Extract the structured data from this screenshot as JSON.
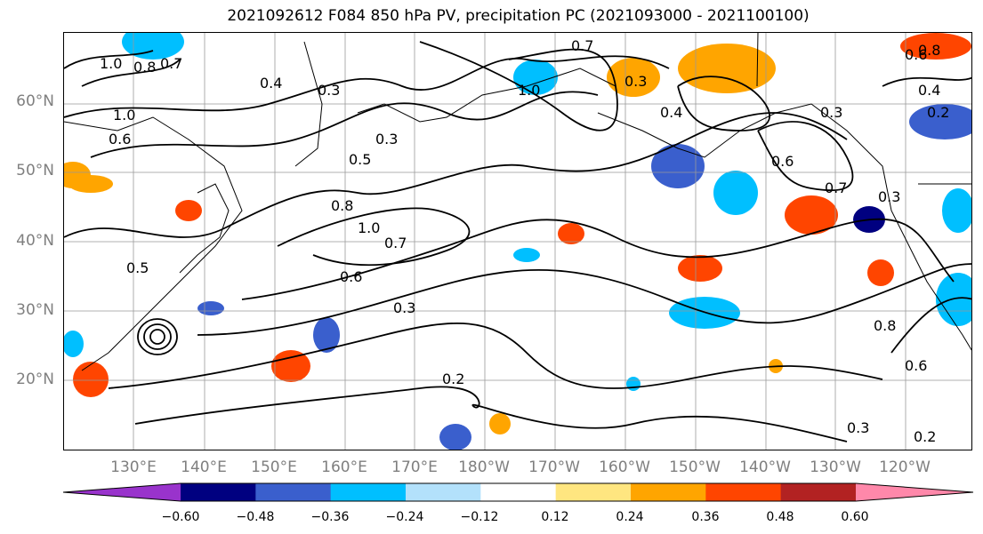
{
  "title": "2021092612 F084 850 hPa PV, precipitation PC (2021093000 - 2021100100)",
  "lat_labels": [
    "60°N",
    "50°N",
    "40°N",
    "30°N",
    "20°N"
  ],
  "lon_labels": [
    "130°E",
    "140°E",
    "150°E",
    "160°E",
    "170°E",
    "180°W",
    "170°W",
    "160°W",
    "150°W",
    "140°W",
    "130°W",
    "120°W"
  ],
  "contour_labels": [
    "1.0",
    "0.8",
    "0.7",
    "1.0",
    "0.6",
    "0.3",
    "0.4",
    "0.3",
    "0.5",
    "0.8",
    "1.0",
    "0.7",
    "0.6",
    "0.3",
    "0.2",
    "0.7",
    "1.0",
    "0.3",
    "0.4",
    "0.3",
    "0.6",
    "0.7",
    "0.3",
    "0.8",
    "0.6",
    "0.4",
    "0.2",
    "0.2",
    "0.3",
    "0.8",
    "0.6",
    "0.5"
  ],
  "colorbar": {
    "ticks": [
      "−0.60",
      "−0.48",
      "−0.36",
      "−0.24",
      "−0.12",
      "0.12",
      "0.24",
      "0.36",
      "0.48",
      "0.60"
    ],
    "colors": [
      "#9933cc",
      "#000080",
      "#3a5fcd",
      "#00bfff",
      "#b3e1fb",
      "#ffffff",
      "#ffe680",
      "#ffa500",
      "#ff4500",
      "#b22222",
      "#ff88aa"
    ]
  }
}
